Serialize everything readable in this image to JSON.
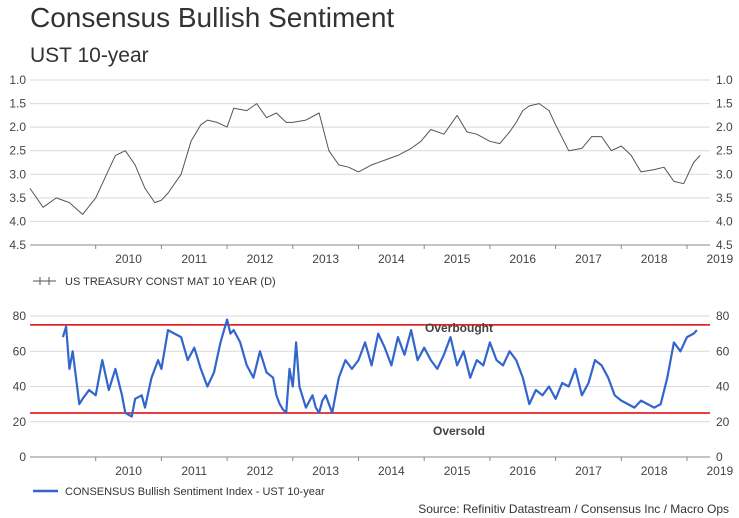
{
  "header": {
    "title": "Consensus Bullish Sentiment",
    "subtitle": "UST 10-year"
  },
  "source": "Source: Refinitiv Datastream / Consensus Inc / Macro Ops",
  "colors": {
    "top_series": "#555555",
    "bottom_series": "#3366cc",
    "bands": "#e00000",
    "grid": "#d9d9d9"
  },
  "chart_data": [
    {
      "type": "line",
      "title": "UST 10-year",
      "legend": "US TREASURY CONST MAT 10 YEAR (D)",
      "y_inverted": true,
      "ylim": [
        1.0,
        4.5
      ],
      "yticks": [
        "1.0",
        "1.5",
        "2.0",
        "2.5",
        "3.0",
        "3.5",
        "4.0",
        "4.5"
      ],
      "xlim": [
        2009.0,
        2019.35
      ],
      "xticks": [
        "2010",
        "2011",
        "2012",
        "2013",
        "2014",
        "2015",
        "2016",
        "2017",
        "2018",
        "2019"
      ],
      "x": [
        2009.0,
        2009.2,
        2009.4,
        2009.6,
        2009.8,
        2010.0,
        2010.2,
        2010.3,
        2010.45,
        2010.6,
        2010.75,
        2010.9,
        2011.0,
        2011.1,
        2011.3,
        2011.45,
        2011.6,
        2011.7,
        2011.85,
        2012.0,
        2012.1,
        2012.3,
        2012.45,
        2012.6,
        2012.75,
        2012.9,
        2013.0,
        2013.2,
        2013.4,
        2013.55,
        2013.7,
        2013.85,
        2014.0,
        2014.2,
        2014.4,
        2014.6,
        2014.8,
        2014.95,
        2015.1,
        2015.3,
        2015.5,
        2015.65,
        2015.8,
        2016.0,
        2016.15,
        2016.3,
        2016.4,
        2016.5,
        2016.6,
        2016.75,
        2016.9,
        2017.0,
        2017.2,
        2017.4,
        2017.55,
        2017.7,
        2017.85,
        2018.0,
        2018.15,
        2018.3,
        2018.5,
        2018.65,
        2018.8,
        2018.95,
        2019.1,
        2019.2
      ],
      "values": [
        3.3,
        3.7,
        3.5,
        3.6,
        3.85,
        3.5,
        2.9,
        2.6,
        2.5,
        2.8,
        3.3,
        3.6,
        3.55,
        3.4,
        3.0,
        2.3,
        1.95,
        1.85,
        1.9,
        2.0,
        1.6,
        1.65,
        1.5,
        1.8,
        1.7,
        1.9,
        1.9,
        1.85,
        1.7,
        2.5,
        2.8,
        2.85,
        2.95,
        2.8,
        2.7,
        2.6,
        2.45,
        2.3,
        2.05,
        2.15,
        1.75,
        2.1,
        2.15,
        2.3,
        2.35,
        2.1,
        1.9,
        1.65,
        1.55,
        1.5,
        1.65,
        1.95,
        2.5,
        2.45,
        2.2,
        2.2,
        2.5,
        2.4,
        2.6,
        2.95,
        2.9,
        2.85,
        3.15,
        3.2,
        2.75,
        2.6
      ]
    },
    {
      "type": "line",
      "title": "CONSENSUS Bullish Sentiment",
      "legend": "CONSENSUS Bullish Sentiment Index - UST 10-year",
      "ylim": [
        0,
        80
      ],
      "yticks": [
        "0",
        "20",
        "40",
        "60",
        "80"
      ],
      "xlim": [
        2009.0,
        2019.35
      ],
      "xticks": [
        "2010",
        "2011",
        "2012",
        "2013",
        "2014",
        "2015",
        "2016",
        "2017",
        "2018",
        "2019"
      ],
      "thresholds": [
        {
          "name": "Overbought",
          "value": 75
        },
        {
          "name": "Oversold",
          "value": 25
        }
      ],
      "x": [
        2009.5,
        2009.55,
        2009.6,
        2009.65,
        2009.75,
        2009.8,
        2009.9,
        2010.0,
        2010.1,
        2010.2,
        2010.3,
        2010.4,
        2010.45,
        2010.55,
        2010.6,
        2010.7,
        2010.75,
        2010.85,
        2010.95,
        2011.0,
        2011.1,
        2011.2,
        2011.3,
        2011.4,
        2011.5,
        2011.6,
        2011.7,
        2011.8,
        2011.9,
        2012.0,
        2012.05,
        2012.1,
        2012.2,
        2012.3,
        2012.4,
        2012.5,
        2012.6,
        2012.7,
        2012.75,
        2012.8,
        2012.85,
        2012.9,
        2012.95,
        2013.0,
        2013.05,
        2013.1,
        2013.2,
        2013.3,
        2013.35,
        2013.4,
        2013.45,
        2013.5,
        2013.55,
        2013.6,
        2013.7,
        2013.8,
        2013.9,
        2014.0,
        2014.1,
        2014.2,
        2014.3,
        2014.4,
        2014.5,
        2014.6,
        2014.7,
        2014.8,
        2014.9,
        2015.0,
        2015.1,
        2015.2,
        2015.3,
        2015.4,
        2015.5,
        2015.6,
        2015.7,
        2015.8,
        2015.9,
        2016.0,
        2016.1,
        2016.2,
        2016.3,
        2016.4,
        2016.5,
        2016.6,
        2016.7,
        2016.8,
        2016.9,
        2017.0,
        2017.1,
        2017.2,
        2017.3,
        2017.4,
        2017.5,
        2017.6,
        2017.7,
        2017.8,
        2017.9,
        2018.0,
        2018.1,
        2018.2,
        2018.3,
        2018.4,
        2018.5,
        2018.6,
        2018.7,
        2018.8,
        2018.9,
        2019.0,
        2019.1,
        2019.15
      ],
      "values": [
        68,
        74,
        50,
        60,
        30,
        33,
        38,
        35,
        55,
        38,
        50,
        35,
        25,
        23,
        33,
        35,
        28,
        45,
        55,
        50,
        72,
        70,
        68,
        55,
        62,
        50,
        40,
        48,
        65,
        78,
        70,
        72,
        65,
        52,
        45,
        60,
        48,
        45,
        35,
        30,
        27,
        25,
        50,
        40,
        65,
        40,
        28,
        35,
        28,
        25,
        32,
        35,
        30,
        25,
        45,
        55,
        50,
        55,
        65,
        52,
        70,
        62,
        52,
        68,
        58,
        72,
        55,
        62,
        55,
        50,
        58,
        68,
        52,
        60,
        45,
        55,
        52,
        65,
        55,
        52,
        60,
        55,
        45,
        30,
        38,
        35,
        40,
        33,
        42,
        40,
        50,
        35,
        42,
        55,
        52,
        45,
        35,
        32,
        30,
        28,
        32,
        30,
        28,
        30,
        45,
        65,
        60,
        68,
        70,
        72
      ]
    }
  ]
}
